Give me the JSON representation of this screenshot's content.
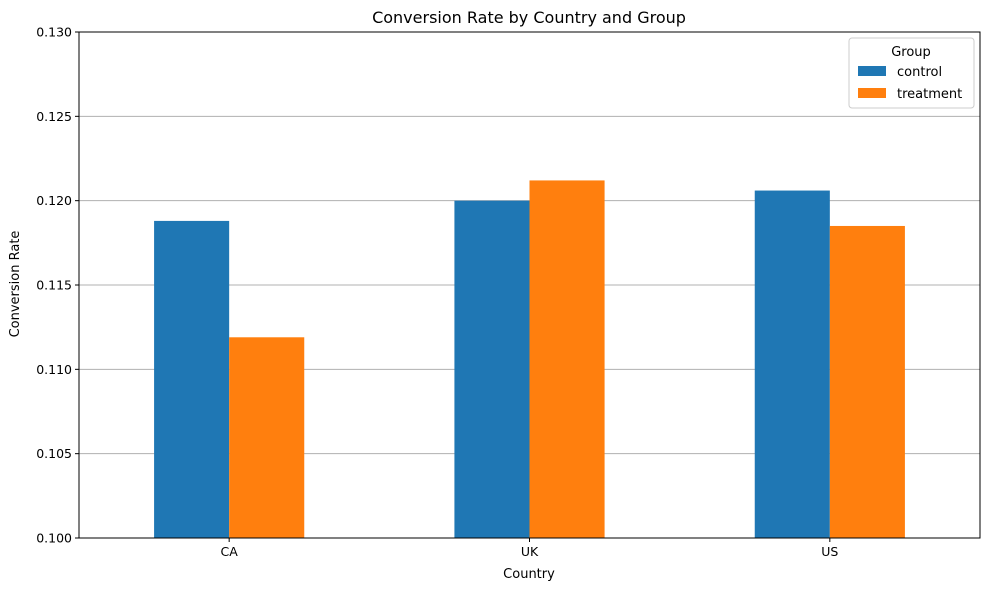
{
  "chart_data": {
    "type": "bar",
    "title": "Conversion Rate by Country and Group",
    "xlabel": "Country",
    "ylabel": "Conversion Rate",
    "categories": [
      "CA",
      "UK",
      "US"
    ],
    "series": [
      {
        "name": "control",
        "values": [
          0.1188,
          0.12,
          0.1206
        ]
      },
      {
        "name": "treatment",
        "values": [
          0.1119,
          0.1212,
          0.1185
        ]
      }
    ],
    "ylim": [
      0.1,
      0.13
    ],
    "yticks": [
      0.1,
      0.105,
      0.11,
      0.115,
      0.12,
      0.125,
      0.13
    ],
    "ytick_labels": [
      "0.100",
      "0.105",
      "0.110",
      "0.115",
      "0.120",
      "0.125",
      "0.130"
    ],
    "grid": "y",
    "legend": {
      "title": "Group",
      "placement": "top-right"
    },
    "colors": {
      "control": "#1f77b4",
      "treatment": "#ff7f0e"
    }
  }
}
